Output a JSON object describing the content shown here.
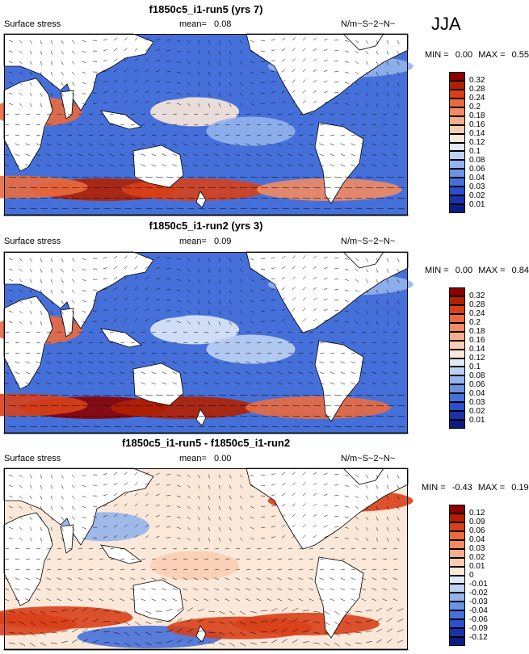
{
  "season": "JJA",
  "chart_data": [
    {
      "type": "heatmap",
      "title": "f1850c5_i1-run5 (yrs 7)",
      "variable": "Surface stress",
      "mean_label": "mean=",
      "mean": "0.08",
      "units": "N/m~S~2~N~",
      "min_label": "MIN =",
      "min": "0.00",
      "max_label": "MAX =",
      "max": "0.55",
      "levels": [
        "0.32",
        "0.28",
        "0.24",
        "0.2",
        "0.18",
        "0.16",
        "0.14",
        "0.12",
        "0.1",
        "0.08",
        "0.06",
        "0.04",
        "0.03",
        "0.02",
        "0.01"
      ],
      "colors": [
        "#8b0000",
        "#b22000",
        "#d8401a",
        "#ea6a3e",
        "#f28a62",
        "#f6ad8d",
        "#f9cdb4",
        "#fbe8d8",
        "#dfe9f8",
        "#bcd2f2",
        "#93b4ec",
        "#6b92e3",
        "#4670d9",
        "#2a4fcd",
        "#1a32a8",
        "#0d1c80"
      ],
      "blob_fields": [
        {
          "lon": 120,
          "lat": -45,
          "v": 0.3
        },
        {
          "lon": 200,
          "lat": -45,
          "v": 0.26
        },
        {
          "lon": 40,
          "lat": -43,
          "v": 0.22
        },
        {
          "lon": 320,
          "lat": -45,
          "v": 0.18
        },
        {
          "lon": 60,
          "lat": 15,
          "v": 0.2
        },
        {
          "lon": 200,
          "lat": 15,
          "v": 0.12
        },
        {
          "lon": 250,
          "lat": 0,
          "v": 0.07
        },
        {
          "lon": 170,
          "lat": 35,
          "v": 0.03
        },
        {
          "lon": 330,
          "lat": 50,
          "v": 0.06
        }
      ]
    },
    {
      "type": "heatmap",
      "title": "f1850c5_i1-run2 (yrs 3)",
      "variable": "Surface stress",
      "mean_label": "mean=",
      "mean": "0.09",
      "units": "N/m~S~2~N~",
      "min_label": "MIN =",
      "min": "0.00",
      "max_label": "MAX =",
      "max": "0.84",
      "levels": [
        "0.32",
        "0.28",
        "0.24",
        "0.2",
        "0.18",
        "0.16",
        "0.14",
        "0.12",
        "0.1",
        "0.08",
        "0.06",
        "0.04",
        "0.03",
        "0.02",
        "0.01"
      ],
      "colors": [
        "#8b0000",
        "#b22000",
        "#d8401a",
        "#ea6a3e",
        "#f28a62",
        "#f6ad8d",
        "#f9cdb4",
        "#fbe8d8",
        "#dfe9f8",
        "#bcd2f2",
        "#93b4ec",
        "#6b92e3",
        "#4670d9",
        "#2a4fcd",
        "#1a32a8",
        "#0d1c80"
      ],
      "blob_fields": [
        {
          "lon": 110,
          "lat": -45,
          "v": 0.32
        },
        {
          "lon": 190,
          "lat": -45,
          "v": 0.28
        },
        {
          "lon": 40,
          "lat": -43,
          "v": 0.24
        },
        {
          "lon": 310,
          "lat": -45,
          "v": 0.2
        },
        {
          "lon": 60,
          "lat": 15,
          "v": 0.22
        },
        {
          "lon": 200,
          "lat": 15,
          "v": 0.1
        },
        {
          "lon": 250,
          "lat": 0,
          "v": 0.08
        },
        {
          "lon": 170,
          "lat": 35,
          "v": 0.03
        },
        {
          "lon": 330,
          "lat": 50,
          "v": 0.06
        }
      ]
    },
    {
      "type": "heatmap",
      "title": "f1850c5_i1-run5 - f1850c5_i1-run2",
      "variable": "Surface stress",
      "mean_label": "mean=",
      "mean": "0.00",
      "units": "N/m~S~2~N~",
      "min_label": "MIN =",
      "min": "-0.43",
      "max_label": "MAX =",
      "max": "0.19",
      "levels": [
        "0.12",
        "0.09",
        "0.06",
        "0.04",
        "0.03",
        "0.02",
        "0.01",
        "0",
        "-0.01",
        "-0.02",
        "-0.03",
        "-0.04",
        "-0.06",
        "-0.09",
        "-0.12"
      ],
      "colors": [
        "#8b0000",
        "#b22000",
        "#d8401a",
        "#ea6a3e",
        "#f28a62",
        "#f6ad8d",
        "#f9cdb4",
        "#fbe8d8",
        "#dfe9f8",
        "#bcd2f2",
        "#93b4ec",
        "#6b92e3",
        "#4670d9",
        "#2a4fcd",
        "#1a32a8",
        "#0d1c80"
      ],
      "blob_fields": [
        {
          "lon": 30,
          "lat": -45,
          "v": 0.08
        },
        {
          "lon": 80,
          "lat": -40,
          "v": 0.06
        },
        {
          "lon": 160,
          "lat": -55,
          "v": -0.06
        },
        {
          "lon": 240,
          "lat": -48,
          "v": 0.06
        },
        {
          "lon": 300,
          "lat": -45,
          "v": 0.07
        },
        {
          "lon": 330,
          "lat": 50,
          "v": 0.06
        },
        {
          "lon": 120,
          "lat": 30,
          "v": -0.03
        },
        {
          "lon": 200,
          "lat": 0,
          "v": 0.01
        }
      ]
    }
  ]
}
